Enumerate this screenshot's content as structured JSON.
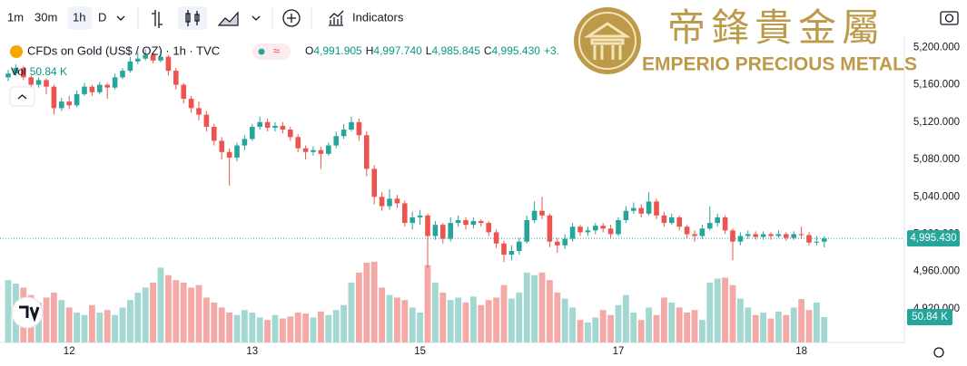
{
  "toolbar": {
    "intervals": [
      "1m",
      "30m",
      "1h",
      "D"
    ],
    "indicators": "Indicators"
  },
  "legend": {
    "symbol": "CFDs on Gold (US$ / OZ) · 1h · TVC",
    "o_label": "O",
    "o_value": "4,991.905",
    "h_label": "H",
    "h_value": "4,997.740",
    "l_label": "L",
    "l_value": "4,985.845",
    "c_label": "C",
    "c_value": "4,995.430",
    "change": "+3.",
    "vol_label": "Vol",
    "vol_value": "50.84 K"
  },
  "watermark": {
    "chinese": "帝鋒貴金屬",
    "english": "EMPERIO PRECIOUS METALS"
  },
  "chart_data": {
    "type": "candlestick",
    "categories": [
      null,
      null,
      null,
      null,
      null,
      null,
      null,
      null,
      "12",
      null,
      null,
      null,
      null,
      null,
      null,
      null,
      null,
      null,
      null,
      null,
      null,
      null,
      null,
      null,
      null,
      null,
      null,
      null,
      null,
      null,
      null,
      null,
      "13",
      null,
      null,
      null,
      null,
      null,
      null,
      null,
      null,
      null,
      null,
      null,
      null,
      null,
      null,
      null,
      null,
      null,
      null,
      null,
      null,
      null,
      "15",
      null,
      null,
      null,
      null,
      null,
      null,
      null,
      null,
      null,
      null,
      null,
      null,
      null,
      null,
      null,
      null,
      null,
      null,
      null,
      null,
      null,
      null,
      null,
      null,
      null,
      "17",
      null,
      null,
      null,
      null,
      null,
      null,
      null,
      null,
      null,
      null,
      null,
      null,
      null,
      null,
      null,
      null,
      null,
      null,
      null,
      null,
      null,
      null,
      null,
      "18",
      null,
      null,
      null
    ],
    "open": [
      5168,
      5172,
      5178,
      5168,
      5160,
      5165,
      5158,
      5135,
      5142,
      5138,
      5150,
      5158,
      5152,
      5160,
      5157,
      5168,
      5175,
      5185,
      5188,
      5192,
      5186,
      5190,
      5175,
      5160,
      5145,
      5135,
      5128,
      5115,
      5100,
      5088,
      5082,
      5095,
      5102,
      5115,
      5120,
      5114,
      5116,
      5112,
      5104,
      5092,
      5088,
      5090,
      5086,
      5095,
      5105,
      5112,
      5120,
      5106,
      5070,
      5040,
      5030,
      5038,
      5033,
      5012,
      5018,
      5020,
      4998,
      5010,
      4995,
      5012,
      5015,
      5010,
      5014,
      5012,
      5002,
      4990,
      4978,
      4982,
      4992,
      5015,
      5025,
      5020,
      4992,
      4988,
      4995,
      5008,
      5002,
      5004,
      5009,
      5006,
      5000,
      5015,
      5025,
      5028,
      5022,
      5035,
      5020,
      5012,
      5018,
      5008,
      5000,
      4998,
      5006,
      5012,
      5018,
      5004,
      4992,
      4998,
      5000,
      4997,
      5000,
      4998,
      5000,
      4996,
      5000,
      4999,
      4991,
      4991.905
    ],
    "high": [
      5176,
      5182,
      5180,
      5170,
      5168,
      5167,
      5160,
      5146,
      5148,
      5154,
      5162,
      5160,
      5163,
      5162,
      5172,
      5178,
      5190,
      5195,
      5198,
      5194,
      5196,
      5192,
      5178,
      5162,
      5148,
      5142,
      5132,
      5118,
      5104,
      5092,
      5098,
      5106,
      5118,
      5126,
      5124,
      5120,
      5120,
      5115,
      5107,
      5095,
      5094,
      5094,
      5098,
      5110,
      5118,
      5126,
      5124,
      5110,
      5074,
      5045,
      5048,
      5042,
      5036,
      5024,
      5026,
      5022,
      5014,
      5012,
      5018,
      5020,
      5018,
      5018,
      5016,
      5014,
      5005,
      4993,
      4988,
      4996,
      5020,
      5035,
      5040,
      5022,
      4996,
      5000,
      5012,
      5010,
      5008,
      5012,
      5012,
      5010,
      5018,
      5030,
      5034,
      5032,
      5045,
      5038,
      5024,
      5022,
      5020,
      5010,
      5004,
      5010,
      5030,
      5022,
      5020,
      5006,
      5002,
      5004,
      5003,
      5003,
      5002,
      5004,
      5002,
      5003,
      5008,
      5002,
      4998,
      4997.74
    ],
    "low": [
      5164,
      5170,
      5165,
      5156,
      5157,
      5150,
      5128,
      5132,
      5134,
      5136,
      5148,
      5148,
      5150,
      5145,
      5155,
      5166,
      5173,
      5182,
      5186,
      5183,
      5184,
      5170,
      5155,
      5140,
      5130,
      5122,
      5110,
      5095,
      5080,
      5052,
      5078,
      5090,
      5100,
      5112,
      5110,
      5110,
      5108,
      5100,
      5088,
      5080,
      5084,
      5070,
      5084,
      5092,
      5102,
      5110,
      5100,
      5062,
      5032,
      5025,
      5026,
      5028,
      5008,
      5005,
      5010,
      4964,
      4994,
      4990,
      4992,
      5008,
      5005,
      5006,
      5008,
      4998,
      4985,
      4970,
      4972,
      4978,
      4990,
      5012,
      5016,
      4986,
      4980,
      4984,
      4992,
      4998,
      4998,
      5000,
      5002,
      4996,
      4998,
      5012,
      5022,
      5018,
      5020,
      5016,
      5008,
      5010,
      5004,
      4996,
      4992,
      4995,
      5004,
      5008,
      5000,
      4972,
      4988,
      4995,
      4994,
      4994,
      4994,
      4996,
      4993,
      4994,
      4995,
      4988,
      4988,
      4985.845
    ],
    "close": [
      5172,
      5178,
      5168,
      5160,
      5165,
      5158,
      5135,
      5142,
      5138,
      5150,
      5158,
      5152,
      5160,
      5157,
      5168,
      5175,
      5185,
      5188,
      5192,
      5186,
      5190,
      5175,
      5160,
      5145,
      5135,
      5128,
      5115,
      5100,
      5088,
      5082,
      5095,
      5102,
      5115,
      5120,
      5114,
      5116,
      5112,
      5104,
      5092,
      5088,
      5090,
      5086,
      5095,
      5105,
      5112,
      5120,
      5106,
      5070,
      5040,
      5030,
      5038,
      5033,
      5012,
      5018,
      5020,
      4998,
      5010,
      4995,
      5012,
      5015,
      5010,
      5014,
      5012,
      5002,
      4990,
      4978,
      4982,
      4992,
      5015,
      5025,
      5020,
      4992,
      4988,
      4995,
      5008,
      5002,
      5004,
      5009,
      5006,
      5000,
      5015,
      5025,
      5028,
      5022,
      5035,
      5020,
      5012,
      5018,
      5008,
      5000,
      4998,
      5006,
      5012,
      5018,
      5004,
      4992,
      4998,
      5000,
      4997,
      5000,
      4998,
      5000,
      4996,
      5000,
      4999,
      4991,
      4991.905,
      4995.43
    ],
    "volume": [
      125,
      118,
      110,
      95,
      80,
      90,
      100,
      85,
      70,
      60,
      55,
      75,
      60,
      65,
      55,
      70,
      85,
      100,
      110,
      120,
      150,
      135,
      125,
      120,
      110,
      115,
      90,
      80,
      70,
      60,
      55,
      65,
      60,
      50,
      45,
      55,
      48,
      52,
      60,
      58,
      50,
      62,
      55,
      65,
      75,
      120,
      140,
      160,
      162,
      110,
      95,
      90,
      85,
      70,
      60,
      155,
      120,
      100,
      85,
      90,
      80,
      92,
      75,
      85,
      90,
      115,
      88,
      100,
      140,
      135,
      140,
      125,
      100,
      88,
      70,
      45,
      40,
      50,
      65,
      55,
      75,
      95,
      60,
      45,
      70,
      55,
      90,
      80,
      70,
      60,
      65,
      45,
      120,
      128,
      130,
      115,
      88,
      70,
      55,
      60,
      48,
      62,
      55,
      70,
      87,
      65,
      80,
      50.84
    ],
    "ylim": [
      4884,
      5212
    ],
    "yticks": [
      {
        "value": 5200,
        "label": "5,200.000"
      },
      {
        "value": 5160,
        "label": "5,160.000"
      },
      {
        "value": 5120,
        "label": "5,120.000"
      },
      {
        "value": 5080,
        "label": "5,080.000"
      },
      {
        "value": 5040,
        "label": "5,040.000"
      },
      {
        "value": 5000,
        "label": "5,000.000"
      },
      {
        "value": 4960,
        "label": "4,960.000"
      },
      {
        "value": 4920,
        "label": "4,920.000"
      }
    ],
    "volume_ylim": [
      0,
      614
    ],
    "up_color": "#26a69a",
    "down_color": "#ef5350",
    "volume_up_color": "#a2d7d2",
    "volume_down_color": "#f5a9a7",
    "last_price_label": {
      "value": 4995.43,
      "label": "4,995.430"
    },
    "last_volume_label": {
      "value": 50.84,
      "label": "50.84 K"
    }
  }
}
